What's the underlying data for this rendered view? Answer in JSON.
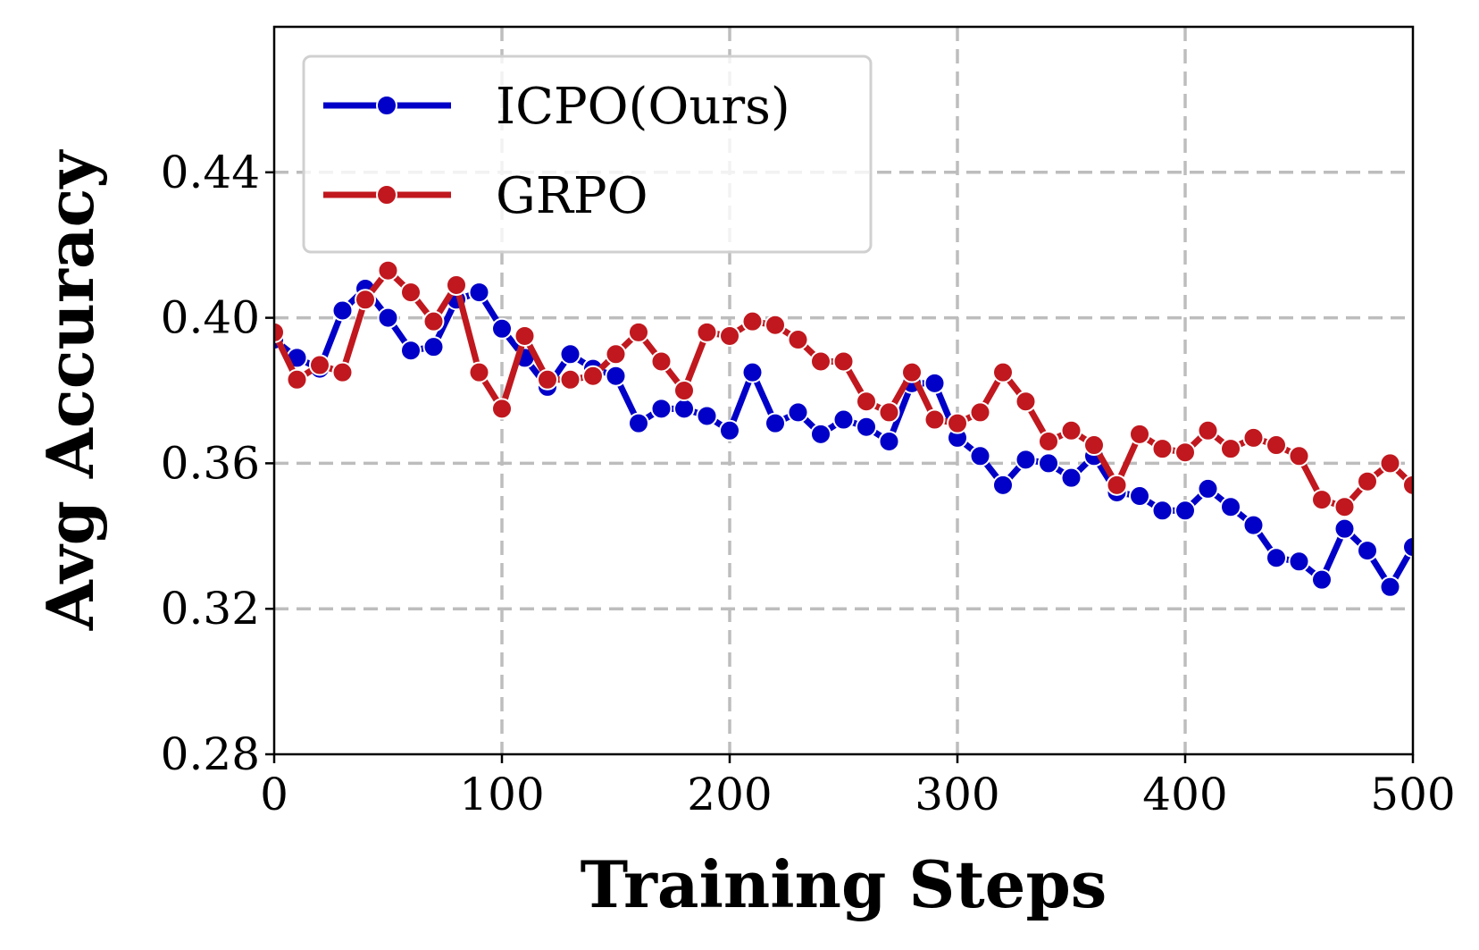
{
  "chart_data": {
    "type": "line",
    "xlabel": "Training Steps",
    "ylabel": "Avg Accuracy",
    "xlim": [
      0,
      500
    ],
    "ylim": [
      0.28,
      0.48
    ],
    "xticks": [
      "0",
      "100",
      "200",
      "300",
      "400",
      "500"
    ],
    "yticks": [
      "0.28",
      "0.32",
      "0.36",
      "0.40",
      "0.44"
    ],
    "grid": true,
    "legend_position": "top-left",
    "x": [
      0,
      10,
      20,
      30,
      40,
      50,
      60,
      70,
      80,
      90,
      100,
      110,
      120,
      130,
      140,
      150,
      160,
      170,
      180,
      190,
      200,
      210,
      220,
      230,
      240,
      250,
      260,
      270,
      280,
      290,
      300,
      310,
      320,
      330,
      340,
      350,
      360,
      370,
      380,
      390,
      400,
      410,
      420,
      430,
      440,
      450,
      460,
      470,
      480,
      490,
      500
    ],
    "series": [
      {
        "name": "ICPO(Ours)",
        "color": "#0000c8",
        "values": [
          0.394,
          0.389,
          0.386,
          0.402,
          0.408,
          0.4,
          0.391,
          0.392,
          0.405,
          0.407,
          0.397,
          0.389,
          0.381,
          0.39,
          0.386,
          0.384,
          0.371,
          0.375,
          0.375,
          0.373,
          0.369,
          0.385,
          0.371,
          0.374,
          0.368,
          0.372,
          0.37,
          0.366,
          0.382,
          0.382,
          0.367,
          0.362,
          0.354,
          0.361,
          0.36,
          0.356,
          0.362,
          0.352,
          0.351,
          0.347,
          0.347,
          0.353,
          0.348,
          0.343,
          0.334,
          0.333,
          0.328,
          0.342,
          0.336,
          0.326,
          0.337
        ]
      },
      {
        "name": "GRPO",
        "color": "#c0181e",
        "values": [
          0.396,
          0.383,
          0.387,
          0.385,
          0.405,
          0.413,
          0.407,
          0.399,
          0.409,
          0.385,
          0.375,
          0.395,
          0.383,
          0.383,
          0.384,
          0.39,
          0.396,
          0.388,
          0.38,
          0.396,
          0.395,
          0.399,
          0.398,
          0.394,
          0.388,
          0.388,
          0.377,
          0.374,
          0.385,
          0.372,
          0.371,
          0.374,
          0.385,
          0.377,
          0.366,
          0.369,
          0.365,
          0.354,
          0.368,
          0.364,
          0.363,
          0.369,
          0.364,
          0.367,
          0.365,
          0.362,
          0.35,
          0.348,
          0.355,
          0.36,
          0.354
        ]
      }
    ]
  }
}
